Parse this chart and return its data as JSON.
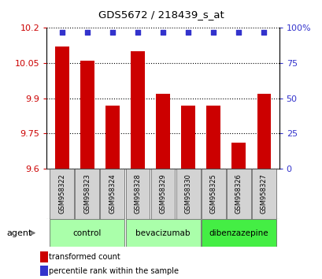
{
  "title": "GDS5672 / 218439_s_at",
  "samples": [
    "GSM958322",
    "GSM958323",
    "GSM958324",
    "GSM958328",
    "GSM958329",
    "GSM958330",
    "GSM958325",
    "GSM958326",
    "GSM958327"
  ],
  "transformed_counts": [
    10.12,
    10.06,
    9.87,
    10.1,
    9.92,
    9.87,
    9.87,
    9.71,
    9.92
  ],
  "percentile_values": [
    97,
    97,
    97,
    97,
    97,
    97,
    97,
    97,
    97
  ],
  "bar_color": "#cc0000",
  "dot_color": "#3333cc",
  "ylim_left": [
    9.6,
    10.2
  ],
  "ylim_right": [
    0,
    100
  ],
  "yticks_left": [
    9.6,
    9.75,
    9.9,
    10.05,
    10.2
  ],
  "yticks_right": [
    0,
    25,
    50,
    75,
    100
  ],
  "ytick_labels_left": [
    "9.6",
    "9.75",
    "9.9",
    "10.05",
    "10.2"
  ],
  "ytick_labels_right": [
    "0",
    "25",
    "50",
    "75",
    "100%"
  ],
  "groups": [
    {
      "label": "control",
      "indices": [
        0,
        1,
        2
      ],
      "color": "#aaffaa"
    },
    {
      "label": "bevacizumab",
      "indices": [
        3,
        4,
        5
      ],
      "color": "#aaffaa"
    },
    {
      "label": "dibenzazepine",
      "indices": [
        6,
        7,
        8
      ],
      "color": "#44ee44"
    }
  ],
  "agent_label": "agent",
  "legend_bar_label": "transformed count",
  "legend_dot_label": "percentile rank within the sample",
  "bar_color_legend": "#cc0000",
  "dot_color_legend": "#3333cc",
  "ylabel_left_color": "#cc0000",
  "ylabel_right_color": "#3333cc",
  "title_color": "#000000"
}
